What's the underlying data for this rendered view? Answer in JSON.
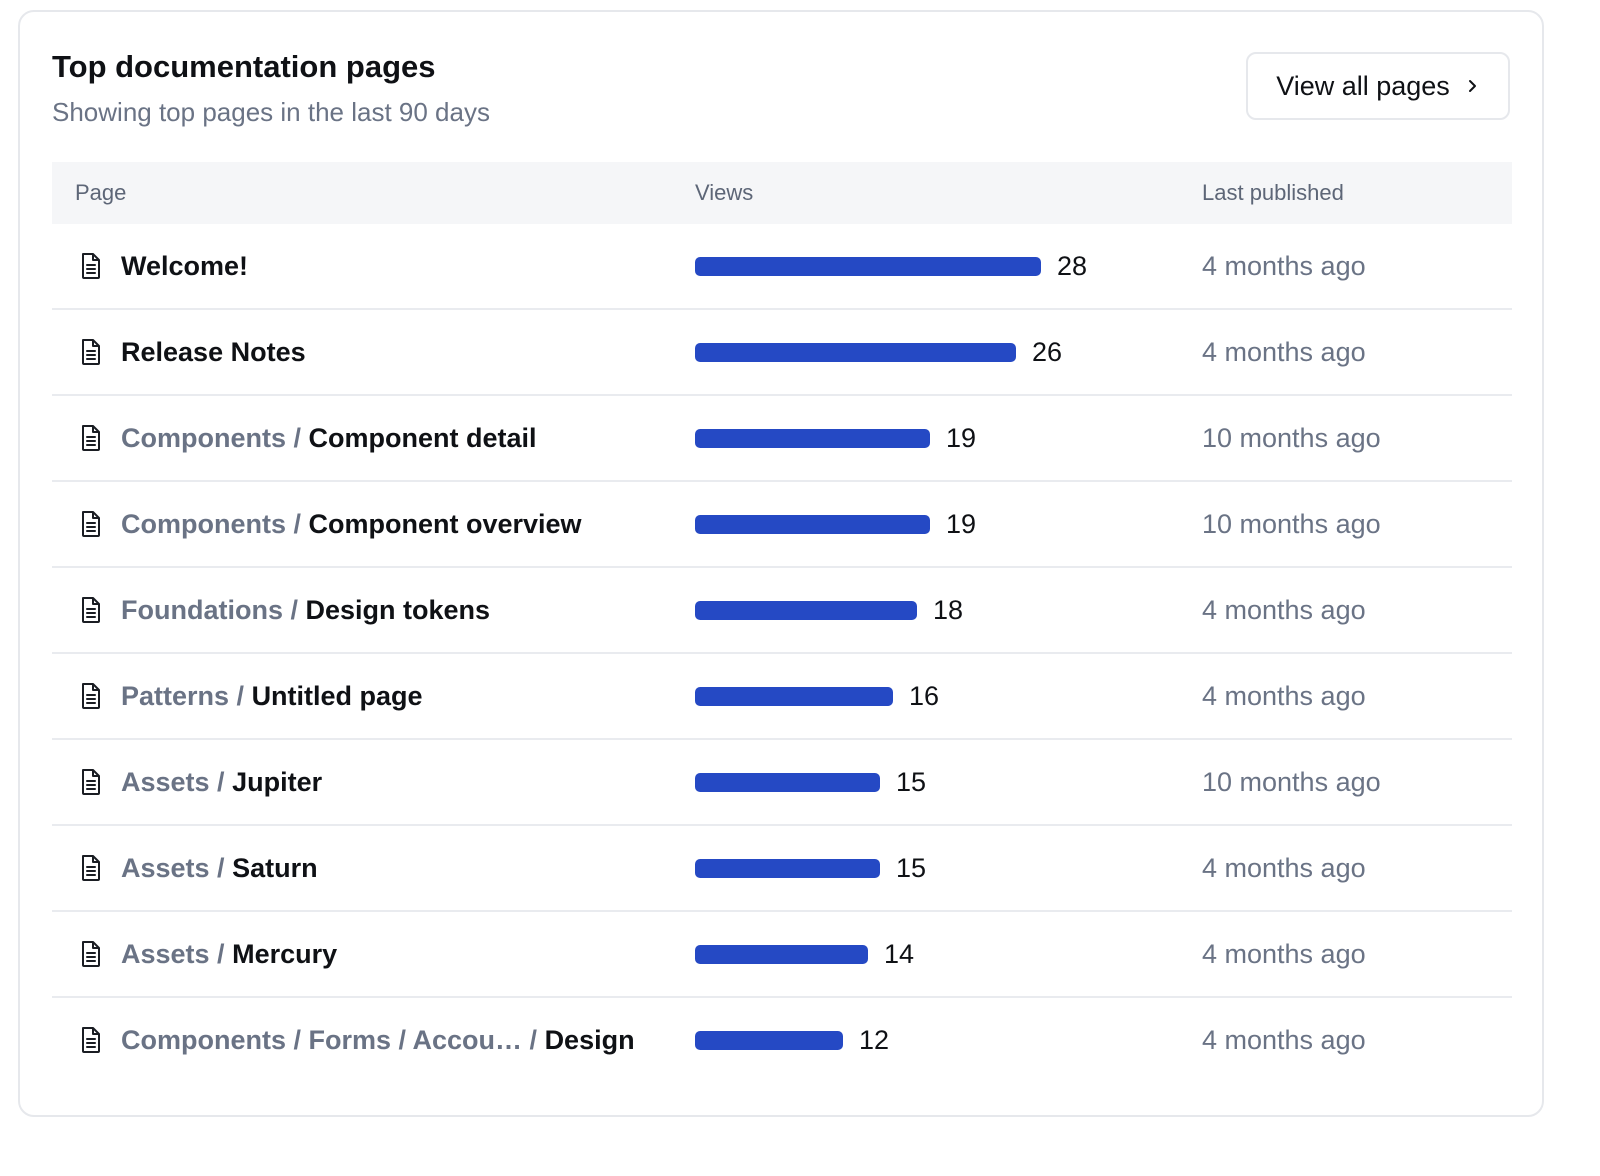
{
  "card": {
    "title": "Top documentation pages",
    "subtitle": "Showing top pages in the last 90 days",
    "view_all_label": "View all pages",
    "view_all_icon": "chevron-right-icon"
  },
  "table": {
    "columns": [
      "Page",
      "Views",
      "Last published"
    ],
    "max_views": 28,
    "bar_color": "#2549c4",
    "rows": [
      {
        "crumbs": "",
        "title": "Welcome!",
        "views": 28,
        "published": "4 months ago"
      },
      {
        "crumbs": "",
        "title": "Release Notes",
        "views": 26,
        "published": "4 months ago"
      },
      {
        "crumbs": "Components /",
        "title": "Component detail",
        "views": 19,
        "published": "10 months ago"
      },
      {
        "crumbs": "Components /",
        "title": "Component overview",
        "views": 19,
        "published": "10 months ago"
      },
      {
        "crumbs": "Foundations /",
        "title": "Design tokens",
        "views": 18,
        "published": "4 months ago"
      },
      {
        "crumbs": "Patterns /",
        "title": "Untitled page",
        "views": 16,
        "published": "4 months ago"
      },
      {
        "crumbs": "Assets /",
        "title": "Jupiter",
        "views": 15,
        "published": "10 months ago"
      },
      {
        "crumbs": "Assets /",
        "title": "Saturn",
        "views": 15,
        "published": "4 months ago"
      },
      {
        "crumbs": "Assets /",
        "title": "Mercury",
        "views": 14,
        "published": "4 months ago"
      },
      {
        "crumbs": "Components / Forms / Accou…  /",
        "title": "Design",
        "views": 12,
        "published": "4 months ago"
      }
    ]
  }
}
